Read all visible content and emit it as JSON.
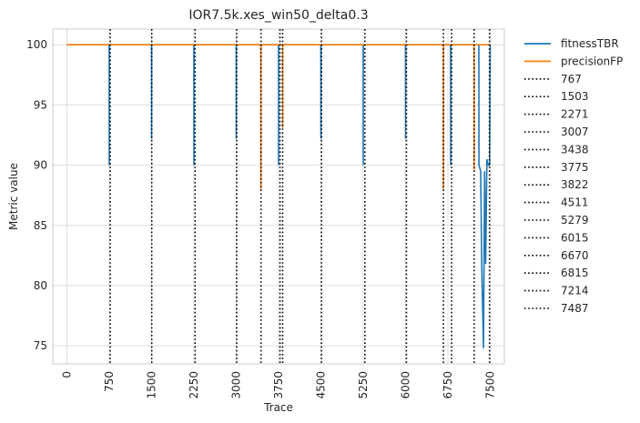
{
  "chart_data": {
    "type": "line",
    "title": "IOR7.5k.xes_win50_delta0.3",
    "xlabel": "Trace",
    "ylabel": "Metric value",
    "xlim": [
      -250,
      7750
    ],
    "ylim": [
      73.5,
      101.3
    ],
    "xticks": [
      0,
      750,
      1500,
      2250,
      3000,
      3750,
      4500,
      5250,
      6000,
      6750,
      7500
    ],
    "yticks": [
      75,
      80,
      85,
      90,
      95,
      100
    ],
    "grid": true,
    "legend_position": "outside-right",
    "series": [
      {
        "name": "fitnessTBR",
        "color": "#1f77b4",
        "points": [
          [
            0,
            100
          ],
          [
            749,
            100
          ],
          [
            750,
            90
          ],
          [
            751,
            100
          ],
          [
            1499,
            100
          ],
          [
            1500,
            92.2
          ],
          [
            1501,
            100
          ],
          [
            2249,
            100
          ],
          [
            2250,
            90
          ],
          [
            2251,
            100
          ],
          [
            2999,
            100
          ],
          [
            3000,
            92.2
          ],
          [
            3001,
            100
          ],
          [
            3749,
            100
          ],
          [
            3750,
            90
          ],
          [
            3751,
            100
          ],
          [
            4499,
            100
          ],
          [
            4500,
            92.2
          ],
          [
            4501,
            100
          ],
          [
            5249,
            100
          ],
          [
            5250,
            90
          ],
          [
            5251,
            100
          ],
          [
            5999,
            100
          ],
          [
            6000,
            92.2
          ],
          [
            6001,
            100
          ],
          [
            6799,
            100
          ],
          [
            6800,
            90
          ],
          [
            6801,
            100
          ],
          [
            7299,
            100
          ],
          [
            7300,
            90
          ],
          [
            7330,
            89.5
          ],
          [
            7350,
            81.5
          ],
          [
            7380,
            74.8
          ],
          [
            7400,
            89.5
          ],
          [
            7420,
            81.8
          ],
          [
            7440,
            90.5
          ],
          [
            7460,
            90
          ],
          [
            7487,
            90
          ],
          [
            7500,
            100
          ]
        ]
      },
      {
        "name": "precisionFP",
        "color": "#ff7f0e",
        "points": [
          [
            0,
            100
          ],
          [
            3437,
            100
          ],
          [
            3438,
            88
          ],
          [
            3439,
            100
          ],
          [
            3821,
            100
          ],
          [
            3822,
            93.1
          ],
          [
            3823,
            100
          ],
          [
            6669,
            100
          ],
          [
            6670,
            88
          ],
          [
            6671,
            100
          ],
          [
            7213,
            100
          ],
          [
            7214,
            89.6
          ],
          [
            7215,
            100
          ],
          [
            7500,
            100
          ]
        ]
      }
    ],
    "vlines": {
      "color": "#000000",
      "style": "dotted",
      "values": [
        767,
        1503,
        2271,
        3007,
        3438,
        3775,
        3822,
        4511,
        5279,
        6015,
        6670,
        6815,
        7214,
        7487
      ]
    }
  }
}
